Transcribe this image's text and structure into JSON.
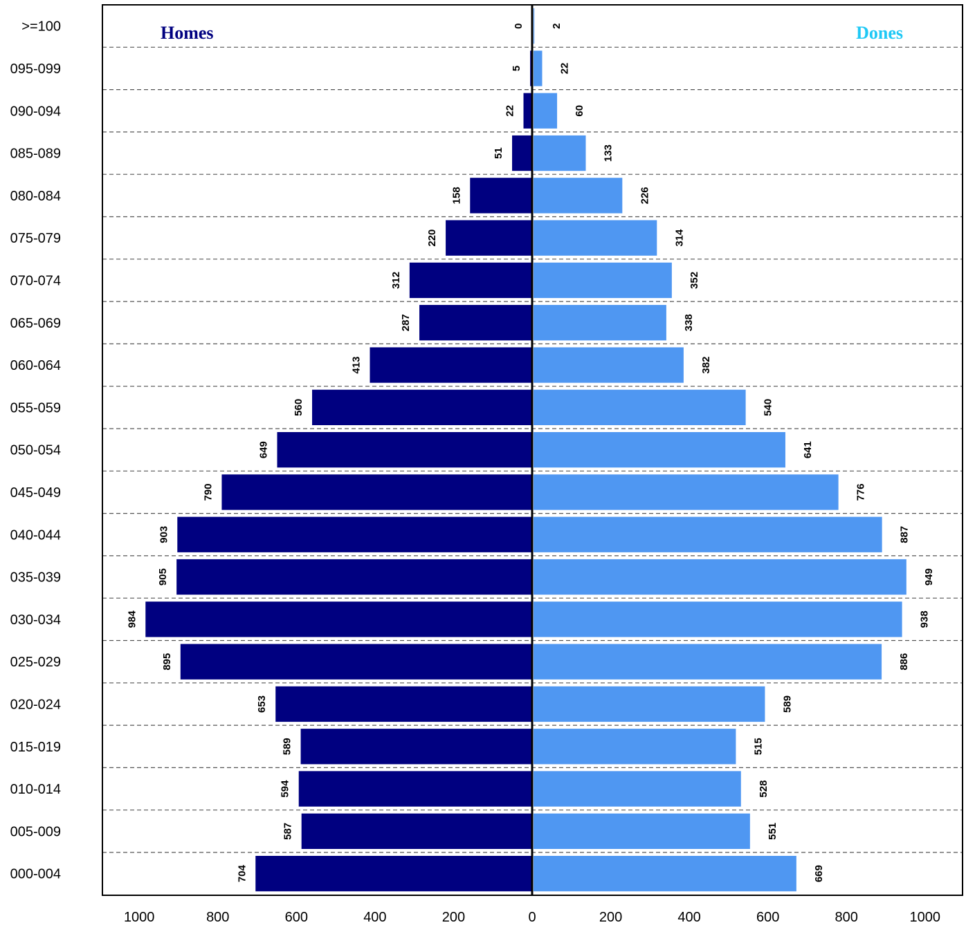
{
  "colors": {
    "homes_bar": "#000080",
    "dones_bar": "#4F97F2",
    "homes_title": "#000080",
    "dones_title": "#1EC8F5",
    "grid": "#555555",
    "axis": "#000000"
  },
  "chart_data": {
    "type": "bar",
    "orientation": "horizontal-population-pyramid",
    "categories": [
      "000-004",
      "005-009",
      "010-014",
      "015-019",
      "020-024",
      "025-029",
      "030-034",
      "035-039",
      "040-044",
      "045-049",
      "050-054",
      "055-059",
      "060-064",
      "065-069",
      "070-074",
      "075-079",
      "080-084",
      "085-089",
      "090-094",
      "095-099",
      ">=100"
    ],
    "series": [
      {
        "name": "Homes",
        "side": "left",
        "values": [
          704,
          587,
          594,
          589,
          653,
          895,
          984,
          905,
          903,
          790,
          649,
          560,
          413,
          287,
          312,
          220,
          158,
          51,
          22,
          5,
          0
        ]
      },
      {
        "name": "Dones",
        "side": "right",
        "values": [
          669,
          551,
          528,
          515,
          589,
          886,
          938,
          949,
          887,
          776,
          641,
          540,
          382,
          338,
          352,
          314,
          226,
          133,
          60,
          22,
          2
        ]
      }
    ],
    "xlim": [
      0,
      1000
    ],
    "x_ticks_left": [
      "1000",
      "800",
      "600",
      "400",
      "200"
    ],
    "x_tick_center": "0",
    "x_ticks_right": [
      "200",
      "400",
      "600",
      "800",
      "1000"
    ],
    "x_tick_values": [
      200,
      400,
      600,
      800,
      1000
    ],
    "grid": "horizontal-dashed",
    "legend": "inside-top (Homes left, Dones right)"
  }
}
